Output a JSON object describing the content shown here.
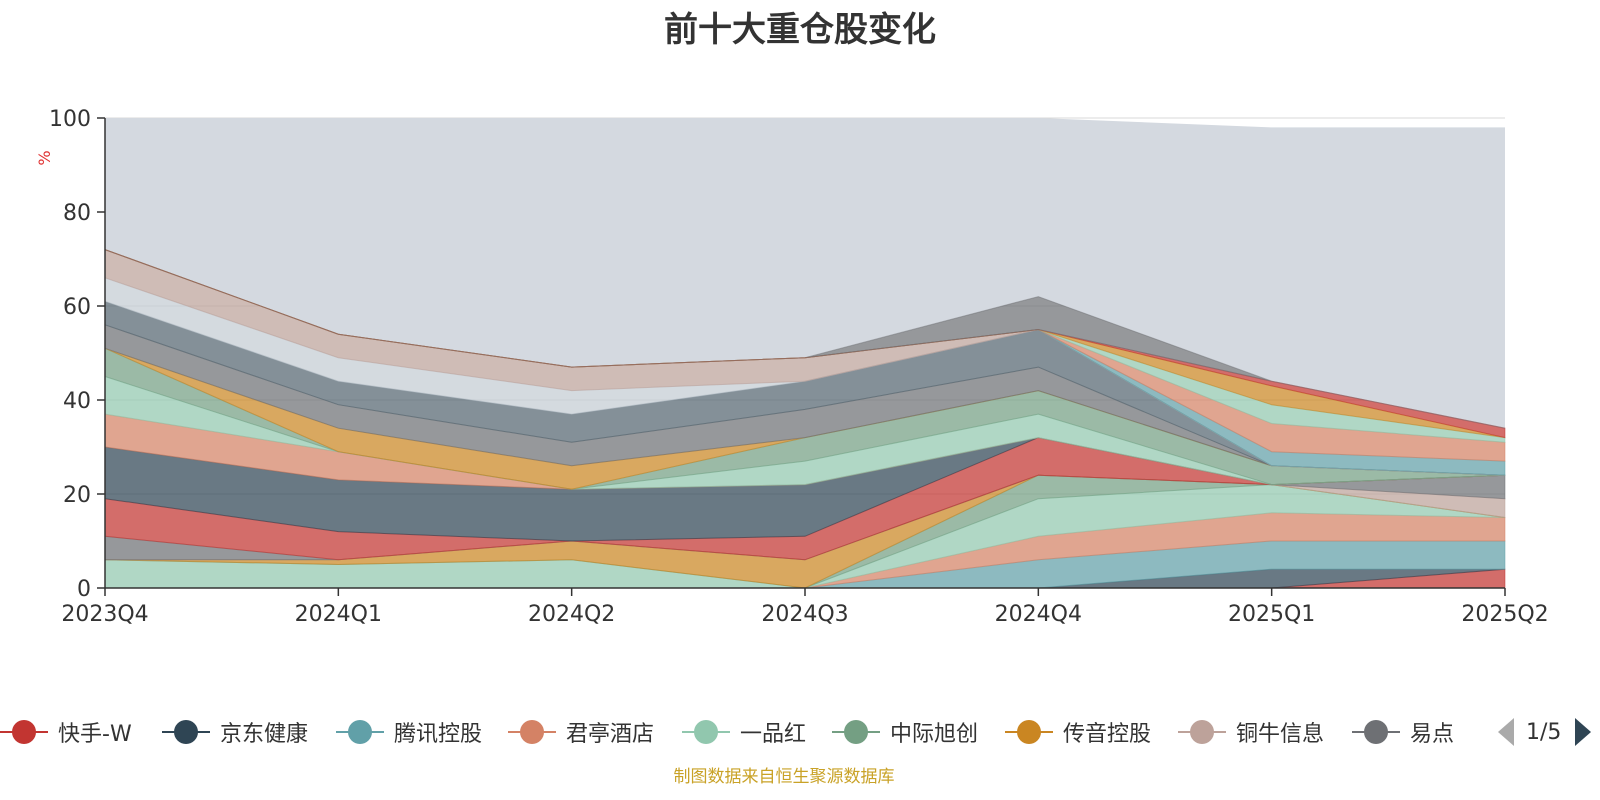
{
  "chart_data": {
    "type": "area",
    "title": "前十大重仓股变化",
    "ylabel": "%",
    "ylim": [
      0,
      100
    ],
    "yticks": [
      0,
      20,
      40,
      60,
      80,
      100
    ],
    "categories": [
      "2023Q4",
      "2024Q1",
      "2024Q2",
      "2024Q3",
      "2024Q4",
      "2025Q1",
      "2025Q2"
    ],
    "grid": true,
    "legend_position": "bottom",
    "series": [
      {
        "name": "快手-W",
        "color": "#c23531",
        "values": [
          0,
          0,
          0,
          0,
          0,
          0,
          4
        ]
      },
      {
        "name": "京东健康",
        "color": "#2f4554",
        "values": [
          0,
          0,
          0,
          0,
          0,
          4,
          0
        ]
      },
      {
        "name": "腾讯控股",
        "color": "#61a0a8",
        "values": [
          0,
          0,
          0,
          0,
          6,
          6,
          6
        ]
      },
      {
        "name": "君亭酒店",
        "color": "#d48265",
        "values": [
          0,
          0,
          0,
          0,
          5,
          6,
          5
        ]
      },
      {
        "name": "一品红",
        "color": "#91c7ae",
        "values": [
          6,
          5,
          6,
          0,
          8,
          6,
          0
        ]
      },
      {
        "name": "中际旭创",
        "color": "#749f83",
        "values": [
          0,
          0,
          0,
          0,
          5,
          0,
          0
        ]
      },
      {
        "name": "传音控股",
        "color": "#ca8622",
        "values": [
          0,
          1,
          4,
          6,
          0,
          0,
          0
        ]
      },
      {
        "name": "铜牛信息",
        "color": "#bda29a",
        "values": [
          0,
          0,
          0,
          0,
          0,
          0,
          4
        ]
      },
      {
        "name": "易点",
        "color": "#6e7074",
        "values": [
          5,
          0,
          0,
          0,
          0,
          0,
          5
        ]
      }
    ],
    "other_layers": [
      {
        "color": "#c23531",
        "values": [
          8,
          6,
          0,
          5,
          8,
          0,
          0
        ]
      },
      {
        "color": "#2f4554",
        "values": [
          11,
          11,
          11,
          11,
          0,
          0,
          0
        ]
      },
      {
        "color": "#d48265",
        "values": [
          7,
          6,
          0,
          0,
          0,
          0,
          0
        ]
      },
      {
        "color": "#91c7ae",
        "values": [
          8,
          0,
          0,
          5,
          5,
          0,
          0
        ]
      },
      {
        "color": "#749f83",
        "values": [
          6,
          0,
          0,
          5,
          5,
          4,
          0
        ]
      },
      {
        "color": "#ca8622",
        "values": [
          0,
          5,
          5,
          0,
          0,
          0,
          0
        ]
      },
      {
        "color": "#6e7074",
        "values": [
          5,
          5,
          5,
          6,
          5,
          0,
          0
        ]
      },
      {
        "color": "#546570",
        "values": [
          5,
          5,
          6,
          6,
          8,
          0,
          0
        ]
      },
      {
        "color": "#c4ccd3",
        "values": [
          5,
          5,
          5,
          0,
          0,
          0,
          0
        ]
      },
      {
        "color": "#bda29a",
        "values": [
          6,
          5,
          5,
          5,
          0,
          0,
          0
        ]
      },
      {
        "color": "#61a0a8",
        "values": [
          0,
          0,
          0,
          0,
          0,
          3,
          3
        ]
      },
      {
        "color": "#d48265",
        "values": [
          0,
          0,
          0,
          0,
          0,
          6,
          4
        ]
      },
      {
        "color": "#91c7ae",
        "values": [
          0,
          0,
          0,
          0,
          0,
          4,
          1
        ]
      },
      {
        "color": "#ca8622",
        "values": [
          0,
          0,
          0,
          0,
          0,
          4,
          0
        ]
      },
      {
        "color": "#c23531",
        "values": [
          0,
          0,
          0,
          0,
          0,
          1,
          2
        ]
      },
      {
        "color": "#6e7074",
        "values": [
          0,
          0,
          0,
          0,
          7,
          0,
          0
        ]
      }
    ],
    "remainder_color": "#d4d9e0",
    "remainder_top": [
      100,
      100,
      100,
      100,
      100,
      98,
      98
    ]
  },
  "legend": {
    "items": [
      "快手-W",
      "京东健康",
      "腾讯控股",
      "君亭酒店",
      "一品红",
      "中际旭创",
      "传音控股",
      "铜牛信息",
      "易点"
    ],
    "page": "1/5"
  },
  "source_note": "制图数据来自恒生聚源数据库"
}
